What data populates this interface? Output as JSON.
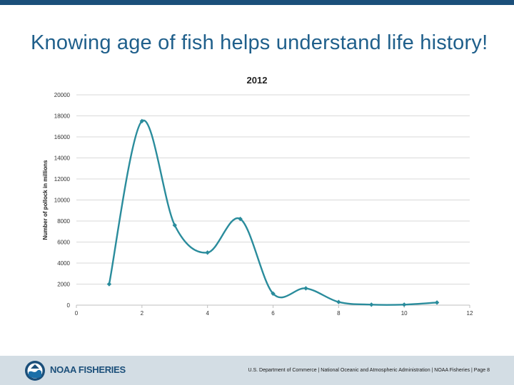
{
  "slide": {
    "title": "Knowing age of fish helps understand life history!"
  },
  "colors": {
    "top_bar": "#1b4f7a",
    "title": "#1f5f8b",
    "series": "#2a8c9c",
    "footer_bg": "#d3dde4"
  },
  "chart_data": {
    "type": "line",
    "title": "2012",
    "xlabel": "",
    "ylabel": "Number of pollock in millions",
    "xlim": [
      0,
      12
    ],
    "ylim": [
      0,
      20000
    ],
    "xticks": [
      0,
      2,
      4,
      6,
      8,
      10,
      12
    ],
    "yticks": [
      0,
      2000,
      4000,
      6000,
      8000,
      10000,
      12000,
      14000,
      16000,
      18000,
      20000
    ],
    "grid": true,
    "smooth": true,
    "series": [
      {
        "x": [
          1,
          2,
          3,
          4,
          5,
          6,
          7,
          8,
          9,
          10,
          11
        ],
        "values": [
          2000,
          17500,
          7600,
          5000,
          8200,
          1100,
          1600,
          300,
          50,
          50,
          250
        ]
      }
    ]
  },
  "footer": {
    "logo_text": "NOAA FISHERIES",
    "logo_icon": "noaa-emblem",
    "text": "U.S. Department of Commerce | National Oceanic and Atmospheric Administration | NOAA Fisheries | Page 8"
  }
}
